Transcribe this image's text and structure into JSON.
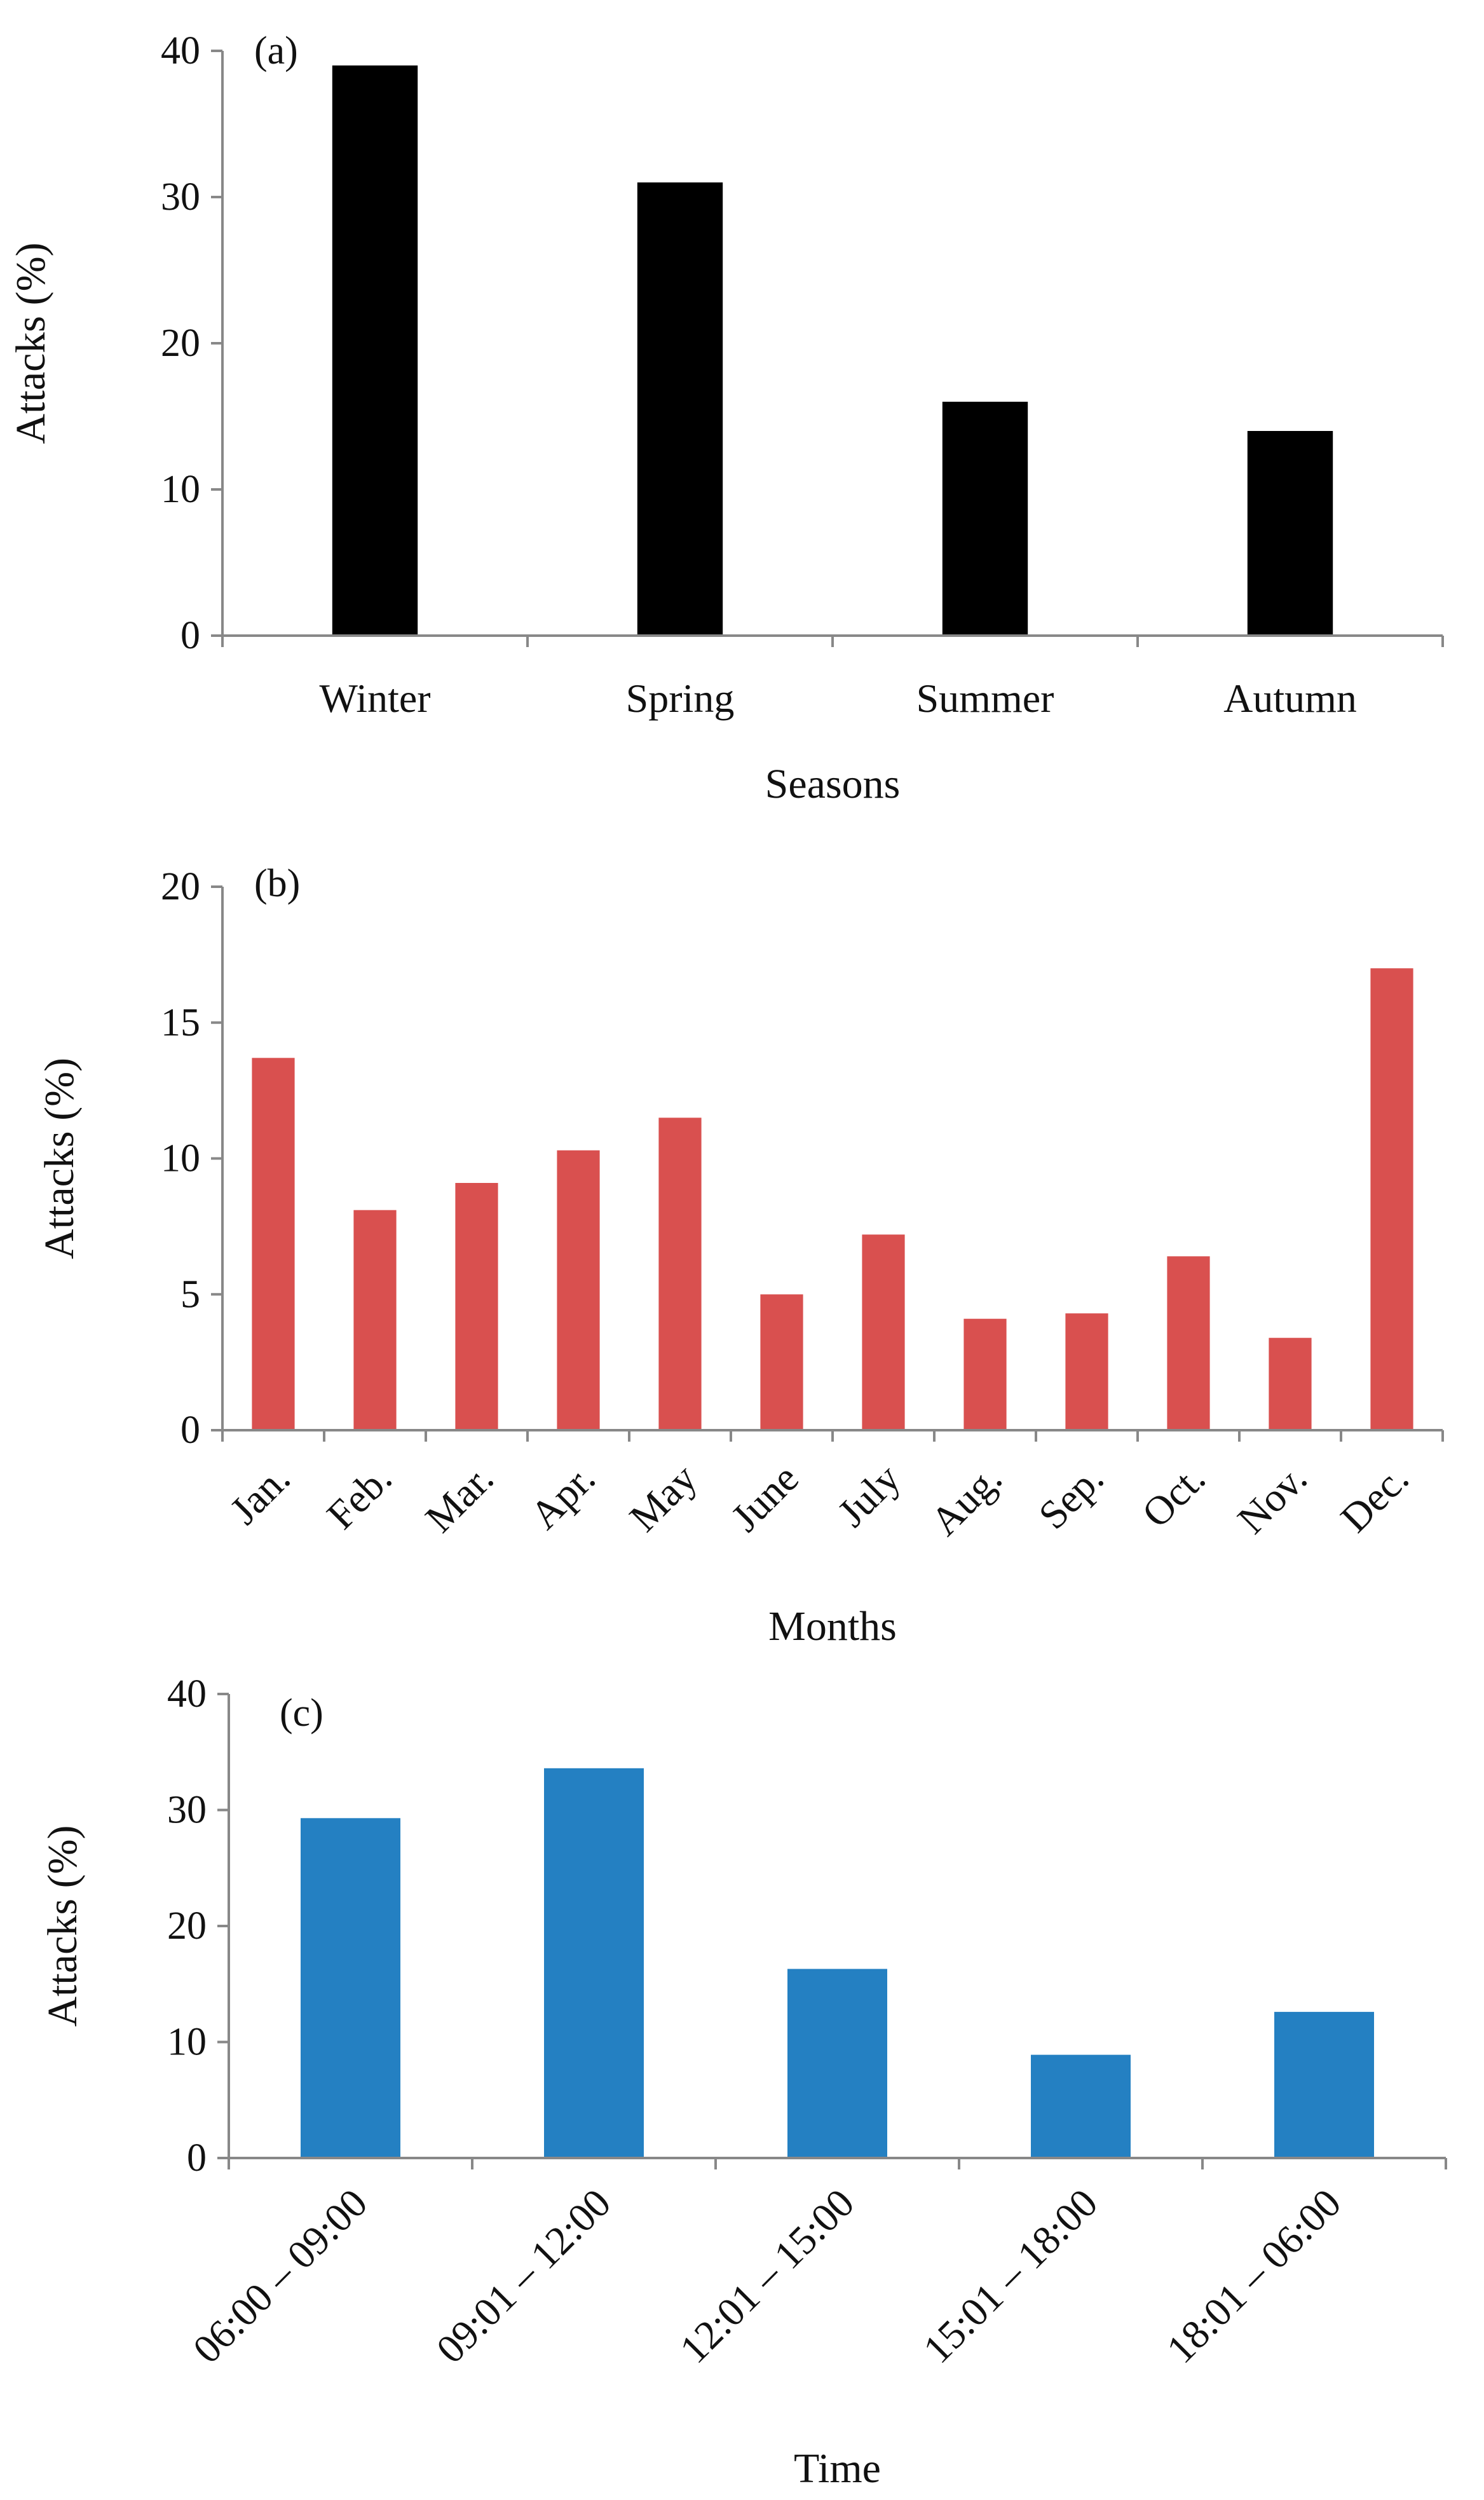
{
  "chart_data": [
    {
      "type": "bar",
      "panel_label": "(a)",
      "categories": [
        "Winter",
        "Spring",
        "Summer",
        "Autumn"
      ],
      "values": [
        39,
        31,
        16,
        14
      ],
      "xlabel": "Seasons",
      "ylabel": "Attacks (%)",
      "ylim": [
        0,
        40
      ],
      "yticks": [
        0,
        10,
        20,
        30,
        40
      ],
      "color": "#000000",
      "grid": false
    },
    {
      "type": "bar",
      "panel_label": "(b)",
      "categories": [
        "Jan.",
        "Feb.",
        "Mar.",
        "Apr.",
        "May",
        "June",
        "July",
        "Aug.",
        "Sep.",
        "Oct.",
        "Nov.",
        "Dec."
      ],
      "values": [
        13.7,
        8.1,
        9.1,
        10.3,
        11.5,
        5.0,
        7.2,
        4.1,
        4.3,
        6.4,
        3.4,
        17.0
      ],
      "xlabel": "Months",
      "ylabel": "Attacks (%)",
      "ylim": [
        0,
        20
      ],
      "yticks": [
        0,
        5,
        10,
        15,
        20
      ],
      "color": "#d9504f",
      "grid": false
    },
    {
      "type": "bar",
      "panel_label": "(c)",
      "categories": [
        "06:00 – 09:00",
        "09:01 – 12:00",
        "12:01 – 15:00",
        "15:01 – 18:00",
        "18:01 – 06:00"
      ],
      "values": [
        29.3,
        33.6,
        16.3,
        8.9,
        12.6
      ],
      "xlabel": "Time",
      "ylabel": "Attacks (%)",
      "ylim": [
        0,
        40
      ],
      "yticks": [
        0,
        10,
        20,
        30,
        40
      ],
      "color": "#2480c2",
      "grid": false
    }
  ]
}
